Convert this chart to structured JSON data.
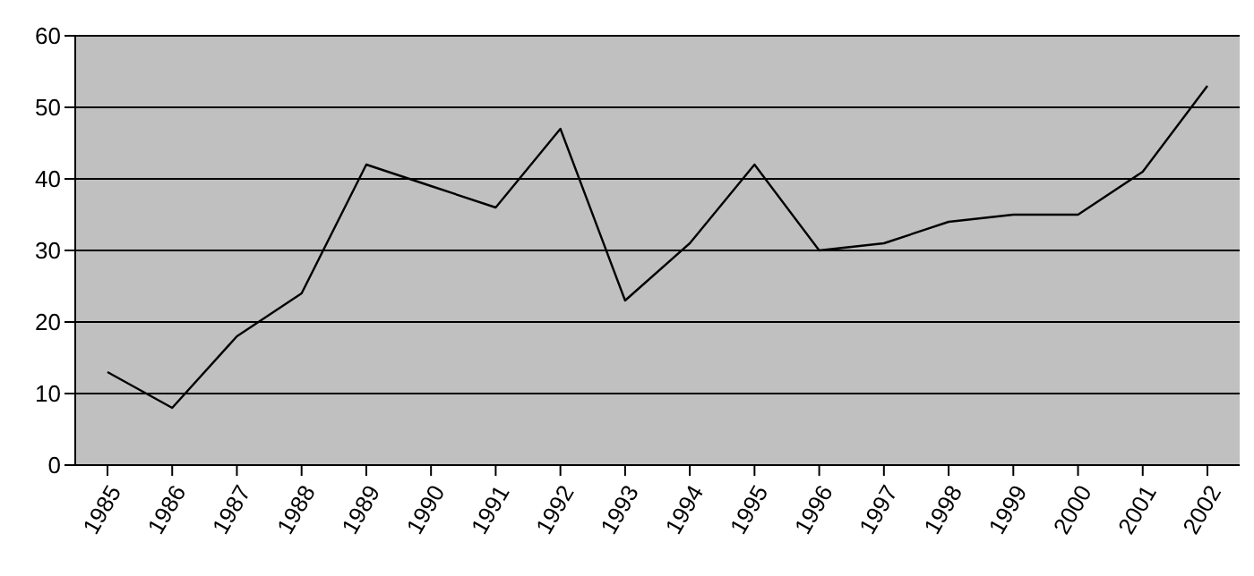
{
  "chart_data": {
    "type": "line",
    "categories": [
      "1985",
      "1986",
      "1987",
      "1988",
      "1989",
      "1990",
      "1991",
      "1992",
      "1993",
      "1994",
      "1995",
      "1996",
      "1997",
      "1998",
      "1999",
      "2000",
      "2001",
      "2002"
    ],
    "series": [
      {
        "color": "#000000",
        "values": [
          13,
          8,
          18,
          24,
          42,
          39,
          36,
          47,
          23,
          31,
          42,
          30,
          31,
          34,
          35,
          35,
          41,
          53
        ]
      }
    ],
    "ylim": [
      0,
      60
    ],
    "yticks": [
      0,
      10,
      20,
      30,
      40,
      50,
      60
    ],
    "grid": "y",
    "legend": false,
    "marker": "none",
    "line_style": "solid"
  }
}
